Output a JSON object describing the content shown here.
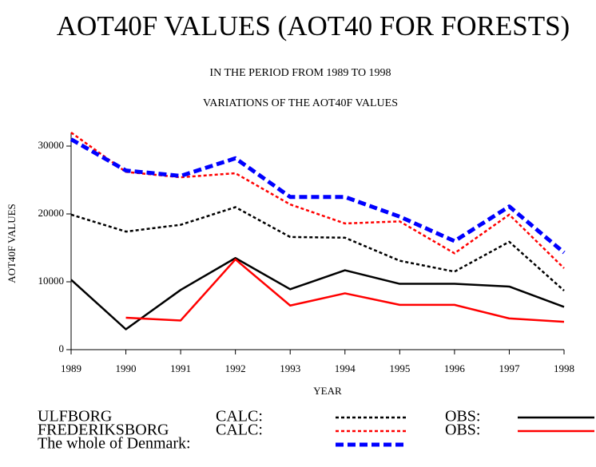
{
  "chart_data": {
    "type": "line",
    "title": "AOT40F VALUES (AOT40 FOR FORESTS)",
    "subtitle": "IN THE PERIOD FROM 1989 TO 1998",
    "subtitle2": "VARIATIONS OF THE AOT40F VALUES",
    "x_label": "YEAR",
    "y_label": "AOT40F VALUES",
    "x": [
      1989,
      1990,
      1991,
      1992,
      1993,
      1994,
      1995,
      1996,
      1997,
      1998
    ],
    "xlim": [
      1989,
      1998
    ],
    "xticks": [
      1989,
      1990,
      1991,
      1992,
      1993,
      1994,
      1995,
      1996,
      1997,
      1998
    ],
    "ylim": [
      0,
      32000
    ],
    "yticks": [
      0,
      10000,
      20000,
      30000
    ],
    "groups": [
      {
        "name": "ULFBORG",
        "series": [
          {
            "name": "CALC:",
            "color": "#000000",
            "style": "dotted",
            "values": [
              19900,
              17400,
              18400,
              21000,
              16600,
              16500,
              13100,
              11500,
              15900,
              8700
            ]
          },
          {
            "name": "OBS:",
            "color": "#000000",
            "style": "solid",
            "values": [
              10300,
              3000,
              8800,
              13500,
              8900,
              11700,
              9700,
              9700,
              9300,
              6300
            ]
          }
        ]
      },
      {
        "name": "FREDERIKSBORG",
        "series": [
          {
            "name": "CALC:",
            "color": "#ff0000",
            "style": "dotted",
            "values": [
              32000,
              26200,
              25400,
              26000,
              21400,
              18600,
              18900,
              14200,
              19900,
              12000
            ]
          },
          {
            "name": "OBS:",
            "color": "#ff0000",
            "style": "solid",
            "values": [
              null,
              4700,
              4300,
              13300,
              6500,
              8300,
              6600,
              6600,
              4600,
              4100
            ]
          }
        ]
      },
      {
        "name": "The whole of Denmark:",
        "series": [
          {
            "color": "#0000ff",
            "style": "dashed",
            "values": [
              31000,
              26400,
              25600,
              28200,
              22500,
              22500,
              19600,
              16000,
              21100,
              14300
            ]
          }
        ]
      }
    ]
  }
}
